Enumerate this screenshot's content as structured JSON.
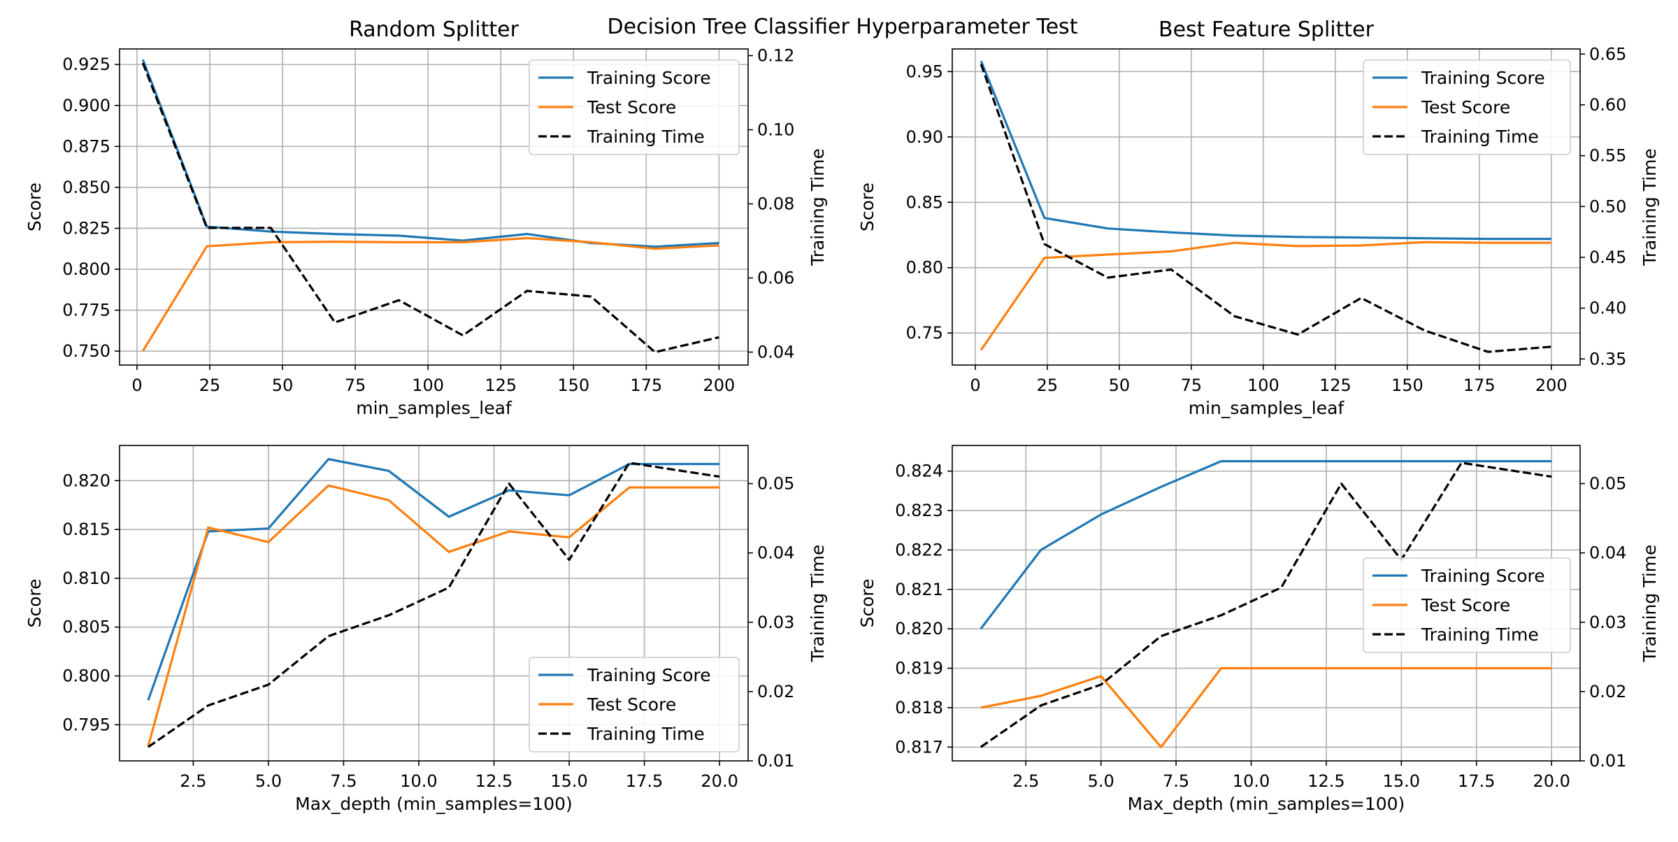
{
  "figure": {
    "title": "Decision Tree Classifier Hyperparameter Test"
  },
  "colors": {
    "train": "#1f77b4",
    "test": "#ff7f0e",
    "time": "#000000",
    "grid": "#b0b0b0"
  },
  "chart_data": [
    {
      "type": "line",
      "title": "Random Splitter",
      "xlabel": "min_samples_leaf",
      "ylabel": "Score",
      "y2label": "Training Time",
      "grid": true,
      "legend": "top-right",
      "xlim": [
        -6,
        210
      ],
      "ylim": [
        0.7415,
        0.9345
      ],
      "y2lim": [
        0.0365,
        0.1218
      ],
      "xticks": [
        0,
        25,
        50,
        75,
        100,
        125,
        150,
        175,
        200
      ],
      "yticks": [
        0.75,
        0.775,
        0.8,
        0.825,
        0.85,
        0.875,
        0.9,
        0.925
      ],
      "y2ticks": [
        0.04,
        0.06,
        0.08,
        0.1,
        0.12
      ],
      "x": [
        2,
        24,
        46,
        68,
        90,
        112,
        134,
        156,
        178,
        200
      ],
      "series": [
        {
          "name": "Training Score",
          "axis": "left",
          "style": "solid",
          "color": "#1f77b4",
          "values": [
            0.928,
            0.826,
            0.823,
            0.8215,
            0.8205,
            0.8175,
            0.8215,
            0.816,
            0.8138,
            0.816
          ]
        },
        {
          "name": "Test Score",
          "axis": "left",
          "style": "solid",
          "color": "#ff7f0e",
          "values": [
            0.75,
            0.814,
            0.8165,
            0.8168,
            0.8165,
            0.8165,
            0.819,
            0.8165,
            0.8125,
            0.8145
          ]
        },
        {
          "name": "Training Time",
          "axis": "right",
          "style": "dashed",
          "color": "#000000",
          "values": [
            0.118,
            0.0735,
            0.0735,
            0.048,
            0.054,
            0.0445,
            0.0565,
            0.055,
            0.04,
            0.044
          ]
        }
      ]
    },
    {
      "type": "line",
      "title": "Best Feature Splitter",
      "xlabel": "min_samples_leaf",
      "ylabel": "Score",
      "y2label": "Training Time",
      "grid": true,
      "legend": "top-right",
      "xlim": [
        -8,
        210
      ],
      "ylim": [
        0.7255,
        0.9673
      ],
      "y2lim": [
        0.344,
        0.655
      ],
      "xticks": [
        0,
        25,
        50,
        75,
        100,
        125,
        150,
        175,
        200
      ],
      "yticks": [
        0.75,
        0.8,
        0.85,
        0.9,
        0.95
      ],
      "y2ticks": [
        0.35,
        0.4,
        0.45,
        0.5,
        0.55,
        0.6,
        0.65
      ],
      "x": [
        2,
        24,
        46,
        68,
        90,
        112,
        134,
        156,
        178,
        200
      ],
      "series": [
        {
          "name": "Training Score",
          "axis": "left",
          "style": "solid",
          "color": "#1f77b4",
          "values": [
            0.958,
            0.838,
            0.83,
            0.827,
            0.8245,
            0.8235,
            0.823,
            0.8225,
            0.822,
            0.822
          ]
        },
        {
          "name": "Test Score",
          "axis": "left",
          "style": "solid",
          "color": "#ff7f0e",
          "values": [
            0.737,
            0.8075,
            0.81,
            0.8125,
            0.819,
            0.8165,
            0.817,
            0.8195,
            0.819,
            0.819
          ]
        },
        {
          "name": "Training Time",
          "axis": "right",
          "style": "dashed",
          "color": "#000000",
          "values": [
            0.64,
            0.463,
            0.43,
            0.438,
            0.392,
            0.374,
            0.41,
            0.378,
            0.357,
            0.362
          ]
        }
      ]
    },
    {
      "type": "line",
      "title": "",
      "xlabel": "Max_depth (min_samples=100)",
      "ylabel": "Score",
      "y2label": "Training Time",
      "grid": true,
      "legend": "bottom-right",
      "xlim": [
        0.05,
        20.95
      ],
      "ylim": [
        0.7913,
        0.8236
      ],
      "y2lim": [
        0.01,
        0.0555
      ],
      "xticks": [
        2.5,
        5.0,
        7.5,
        10.0,
        12.5,
        15.0,
        17.5,
        20.0
      ],
      "yticks": [
        0.795,
        0.8,
        0.805,
        0.81,
        0.815,
        0.82
      ],
      "y2ticks": [
        0.01,
        0.02,
        0.03,
        0.04,
        0.05
      ],
      "x": [
        1,
        3,
        5,
        7,
        9,
        11,
        13,
        15,
        17,
        20
      ],
      "series": [
        {
          "name": "Training Score",
          "axis": "left",
          "style": "solid",
          "color": "#1f77b4",
          "values": [
            0.7975,
            0.8148,
            0.8151,
            0.8222,
            0.821,
            0.8163,
            0.819,
            0.8185,
            0.8217,
            0.8217
          ]
        },
        {
          "name": "Test Score",
          "axis": "left",
          "style": "solid",
          "color": "#ff7f0e",
          "values": [
            0.7928,
            0.8152,
            0.8137,
            0.8195,
            0.818,
            0.8127,
            0.8148,
            0.8142,
            0.8193,
            0.8193
          ]
        },
        {
          "name": "Training Time",
          "axis": "right",
          "style": "dashed",
          "color": "#000000",
          "values": [
            0.012,
            0.018,
            0.021,
            0.028,
            0.031,
            0.035,
            0.05,
            0.039,
            0.053,
            0.051
          ]
        }
      ]
    },
    {
      "type": "line",
      "title": "",
      "xlabel": "Max_depth (min_samples=100)",
      "ylabel": "Score",
      "y2label": "Training Time",
      "grid": true,
      "legend": "center-right",
      "xlim": [
        0.05,
        20.95
      ],
      "ylim": [
        0.81665,
        0.82465
      ],
      "y2lim": [
        0.01,
        0.0555
      ],
      "xticks": [
        2.5,
        5.0,
        7.5,
        10.0,
        12.5,
        15.0,
        17.5,
        20.0
      ],
      "yticks": [
        0.817,
        0.818,
        0.819,
        0.82,
        0.821,
        0.822,
        0.823,
        0.824
      ],
      "y2ticks": [
        0.01,
        0.02,
        0.03,
        0.04,
        0.05
      ],
      "x": [
        1,
        3,
        5,
        7,
        9,
        11,
        13,
        15,
        17,
        20
      ],
      "series": [
        {
          "name": "Training Score",
          "axis": "left",
          "style": "solid",
          "color": "#1f77b4",
          "values": [
            0.82,
            0.822,
            0.8229,
            0.8236,
            0.82425,
            0.82425,
            0.82425,
            0.82425,
            0.82425,
            0.82425
          ]
        },
        {
          "name": "Test Score",
          "axis": "left",
          "style": "solid",
          "color": "#ff7f0e",
          "values": [
            0.818,
            0.8183,
            0.8188,
            0.817,
            0.819,
            0.819,
            0.819,
            0.819,
            0.819,
            0.819
          ]
        },
        {
          "name": "Training Time",
          "axis": "right",
          "style": "dashed",
          "color": "#000000",
          "values": [
            0.012,
            0.018,
            0.021,
            0.028,
            0.031,
            0.035,
            0.05,
            0.039,
            0.053,
            0.051
          ]
        }
      ]
    }
  ]
}
